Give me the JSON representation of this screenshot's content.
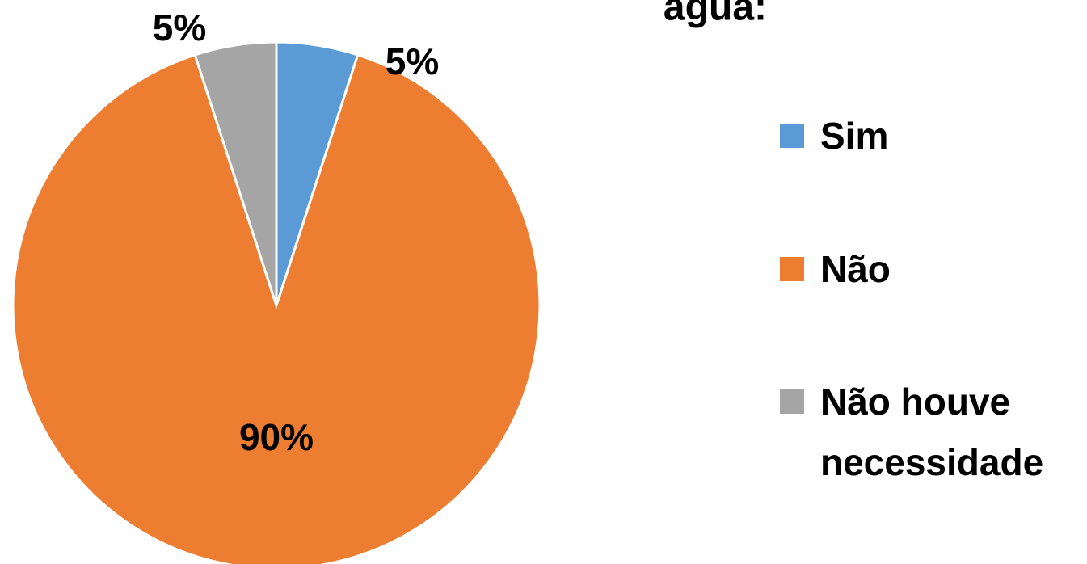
{
  "chart_data": {
    "type": "pie",
    "title": "água:",
    "categories": [
      "Sim",
      "Não",
      "Não houve necessidade"
    ],
    "values": [
      5,
      90,
      5
    ],
    "value_labels": [
      "5%",
      "90%",
      "5%"
    ],
    "colors": [
      "#5b9bd5",
      "#ed7d31",
      "#a5a5a5"
    ]
  }
}
